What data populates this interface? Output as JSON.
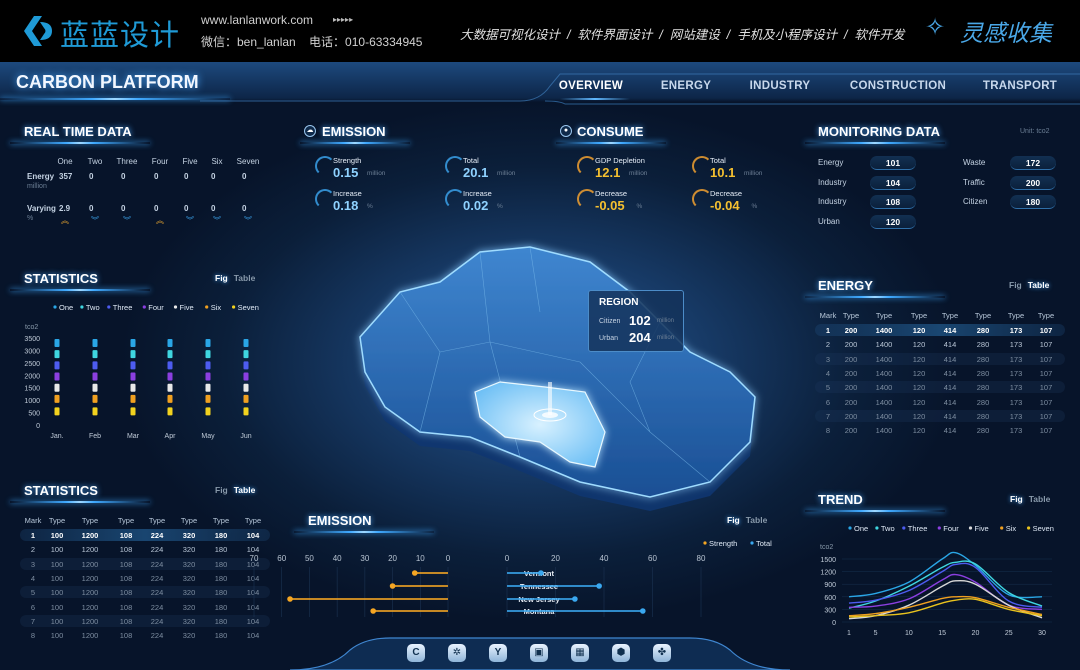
{
  "header": {
    "logo_text": "蓝蓝设计",
    "website": "www.lanlanwork.com",
    "arrows": "▸▸▸▸▸",
    "contact": "微信：ben_lanlan    电话：010-63334945",
    "services": "大数据可视化设计  /  软件界面设计  /  网站建设  /  手机及小程序设计  /  软件开发",
    "right_logo_text": "灵感收集",
    "brand_color": "#1f9ad6"
  },
  "app": {
    "title": "CARBON PLATFORM",
    "nav": [
      "OVERVIEW",
      "ENERGY",
      "INDUSTRY",
      "CONSTRUCTION",
      "TRANSPORT"
    ],
    "active_nav": "OVERVIEW"
  },
  "toggle": {
    "fig": "Fig",
    "table": "Table"
  },
  "realtime": {
    "title": "REAL TIME DATA",
    "columns": [
      "One",
      "Two",
      "Three",
      "Four",
      "Five",
      "Six",
      "Seven"
    ],
    "energy_label": "Energy",
    "energy_unit": "million",
    "energy_values": [
      "357",
      "0",
      "0",
      "0",
      "0",
      "0",
      "0"
    ],
    "varying_label": "Varying",
    "varying_unit": "%",
    "varying_values": [
      "2.9",
      "0",
      "0",
      "0",
      "0",
      "0",
      "0"
    ],
    "trend": [
      "up",
      "down",
      "down",
      "up",
      "down",
      "down",
      "down"
    ]
  },
  "emission_kpi": {
    "title": "EMISSION",
    "items": [
      {
        "label": "Strength",
        "value": "0.15",
        "unit": "million"
      },
      {
        "label": "Total",
        "value": "20.1",
        "unit": "million"
      },
      {
        "label": "Increase",
        "value": "0.18",
        "unit": "%"
      },
      {
        "label": "Increase",
        "value": "0.02",
        "unit": "%"
      }
    ]
  },
  "consume_kpi": {
    "title": "CONSUME",
    "items": [
      {
        "label": "GDP Depletion",
        "value": "12.1",
        "unit": "million"
      },
      {
        "label": "Total",
        "value": "10.1",
        "unit": "million"
      },
      {
        "label": "Decrease",
        "value": "-0.05",
        "unit": "%"
      },
      {
        "label": "Decrease",
        "value": "-0.04",
        "unit": "%"
      }
    ]
  },
  "monitoring": {
    "title": "MONITORING DATA",
    "unit": "Unit: tco2",
    "left": [
      {
        "label": "Energy",
        "value": "101"
      },
      {
        "label": "Industry",
        "value": "104"
      },
      {
        "label": "Industry",
        "value": "108"
      },
      {
        "label": "Urban",
        "value": "120"
      }
    ],
    "right": [
      {
        "label": "Waste",
        "value": "172"
      },
      {
        "label": "Traffic",
        "value": "200"
      },
      {
        "label": "Citizen",
        "value": "180"
      }
    ]
  },
  "region": {
    "title": "REGION",
    "rows": [
      {
        "label": "Citizen",
        "value": "102",
        "unit": "million"
      },
      {
        "label": "Urban",
        "value": "204",
        "unit": "million"
      }
    ]
  },
  "statistics_table": {
    "title": "STATISTICS",
    "active_toggle": "Table",
    "headers": [
      "Mark",
      "Type",
      "Type",
      "Type",
      "Type",
      "Type",
      "Type",
      "Type"
    ],
    "rows": [
      [
        "1",
        "100",
        "1200",
        "108",
        "224",
        "320",
        "180",
        "104"
      ],
      [
        "2",
        "100",
        "1200",
        "108",
        "224",
        "320",
        "180",
        "104"
      ],
      [
        "3",
        "100",
        "1200",
        "108",
        "224",
        "320",
        "180",
        "104"
      ],
      [
        "4",
        "100",
        "1200",
        "108",
        "224",
        "320",
        "180",
        "104"
      ],
      [
        "5",
        "100",
        "1200",
        "108",
        "224",
        "320",
        "180",
        "104"
      ],
      [
        "6",
        "100",
        "1200",
        "108",
        "224",
        "320",
        "180",
        "104"
      ],
      [
        "7",
        "100",
        "1200",
        "108",
        "224",
        "320",
        "180",
        "104"
      ],
      [
        "8",
        "100",
        "1200",
        "108",
        "224",
        "320",
        "180",
        "104"
      ]
    ]
  },
  "energy_table": {
    "title": "ENERGY",
    "active_toggle": "Table",
    "headers": [
      "Mark",
      "Type",
      "Type",
      "Type",
      "Type",
      "Type",
      "Type",
      "Type"
    ],
    "rows": [
      [
        "1",
        "200",
        "1400",
        "120",
        "414",
        "280",
        "173",
        "107"
      ],
      [
        "2",
        "200",
        "1400",
        "120",
        "414",
        "280",
        "173",
        "107"
      ],
      [
        "3",
        "200",
        "1400",
        "120",
        "414",
        "280",
        "173",
        "107"
      ],
      [
        "4",
        "200",
        "1400",
        "120",
        "414",
        "280",
        "173",
        "107"
      ],
      [
        "5",
        "200",
        "1400",
        "120",
        "414",
        "280",
        "173",
        "107"
      ],
      [
        "6",
        "200",
        "1400",
        "120",
        "414",
        "280",
        "173",
        "107"
      ],
      [
        "7",
        "200",
        "1400",
        "120",
        "414",
        "280",
        "173",
        "107"
      ],
      [
        "8",
        "200",
        "1400",
        "120",
        "414",
        "280",
        "173",
        "107"
      ]
    ]
  },
  "bottom_nav_icons": [
    "c-hexagon-icon",
    "gear-icon",
    "y-circle-icon",
    "building-icon",
    "billboard-icon",
    "hexagon-icon",
    "clover-icon"
  ],
  "chart_data": [
    {
      "id": "statistics",
      "title": "STATISTICS",
      "active_toggle": "Fig",
      "type": "bar",
      "ylabel": "tco2",
      "ylim": [
        0,
        3500
      ],
      "yticks": [
        0,
        500,
        1000,
        1500,
        2000,
        2500,
        3000,
        3500
      ],
      "categories": [
        "Jan.",
        "Feb",
        "Mar",
        "Apr",
        "May",
        "Jun"
      ],
      "legend": "top",
      "series": [
        {
          "name": "One",
          "color": "#2aa6e6",
          "values": [
            3300,
            3300,
            3300,
            3300,
            3300,
            3300
          ]
        },
        {
          "name": "Two",
          "color": "#3fd6e0",
          "values": [
            2850,
            2850,
            2850,
            2850,
            2850,
            2850
          ]
        },
        {
          "name": "Three",
          "color": "#4d5cf0",
          "values": [
            2400,
            2400,
            2400,
            2400,
            2400,
            2400
          ]
        },
        {
          "name": "Four",
          "color": "#8b3fe0",
          "values": [
            1950,
            1950,
            1950,
            1950,
            1950,
            1950
          ]
        },
        {
          "name": "Five",
          "color": "#e8e8e8",
          "values": [
            1500,
            1500,
            1500,
            1500,
            1500,
            1500
          ]
        },
        {
          "name": "Six",
          "color": "#f0a020",
          "values": [
            1050,
            1050,
            1050,
            1050,
            1050,
            1050
          ]
        },
        {
          "name": "Seven",
          "color": "#f2d21e",
          "values": [
            550,
            550,
            550,
            550,
            550,
            550
          ]
        }
      ]
    },
    {
      "id": "emission",
      "title": "EMISSION",
      "active_toggle": "Fig",
      "type": "bar",
      "orientation": "butterfly",
      "categories": [
        "Vermont",
        "Tennessee",
        "New Jersey",
        "Montana"
      ],
      "left_ticks": [
        70,
        60,
        50,
        40,
        30,
        20,
        10,
        0
      ],
      "right_ticks": [
        0,
        20,
        40,
        60,
        80
      ],
      "legend": "top-right",
      "series": [
        {
          "name": "Strength",
          "color": "#f5a623",
          "side": "left",
          "xlim": [
            0,
            70
          ],
          "values": [
            12,
            20,
            57,
            27
          ]
        },
        {
          "name": "Total",
          "color": "#3aa8f0",
          "side": "right",
          "xlim": [
            0,
            80
          ],
          "values": [
            14,
            38,
            28,
            56
          ]
        }
      ]
    },
    {
      "id": "trend",
      "title": "TREND",
      "active_toggle": "Fig",
      "type": "line",
      "ylabel": "tco2",
      "ylim": [
        0,
        1700
      ],
      "yticks": [
        0,
        300,
        600,
        900,
        1200,
        1500
      ],
      "xticks": [
        1,
        5,
        10,
        15,
        20,
        25,
        30
      ],
      "x": [
        1,
        5,
        10,
        15,
        17,
        20,
        25,
        30
      ],
      "legend": "top",
      "series": [
        {
          "name": "One",
          "color": "#2aa6e6",
          "values": [
            600,
            680,
            950,
            1500,
            1650,
            1350,
            650,
            600
          ]
        },
        {
          "name": "Two",
          "color": "#3fd6e0",
          "values": [
            330,
            500,
            850,
            1300,
            1420,
            1380,
            700,
            380
          ]
        },
        {
          "name": "Three",
          "color": "#4d5cf0",
          "values": [
            450,
            520,
            750,
            1200,
            1370,
            1300,
            500,
            350
          ]
        },
        {
          "name": "Four",
          "color": "#8b3fe0",
          "values": [
            350,
            380,
            550,
            1000,
            1130,
            950,
            400,
            300
          ]
        },
        {
          "name": "Five",
          "color": "#d8d8d8",
          "values": [
            80,
            150,
            400,
            850,
            980,
            900,
            400,
            100
          ]
        },
        {
          "name": "Six",
          "color": "#f0a020",
          "values": [
            150,
            200,
            350,
            560,
            600,
            580,
            350,
            180
          ]
        },
        {
          "name": "Seven",
          "color": "#e8c21e",
          "values": [
            120,
            150,
            220,
            450,
            520,
            540,
            300,
            150
          ]
        }
      ]
    }
  ]
}
